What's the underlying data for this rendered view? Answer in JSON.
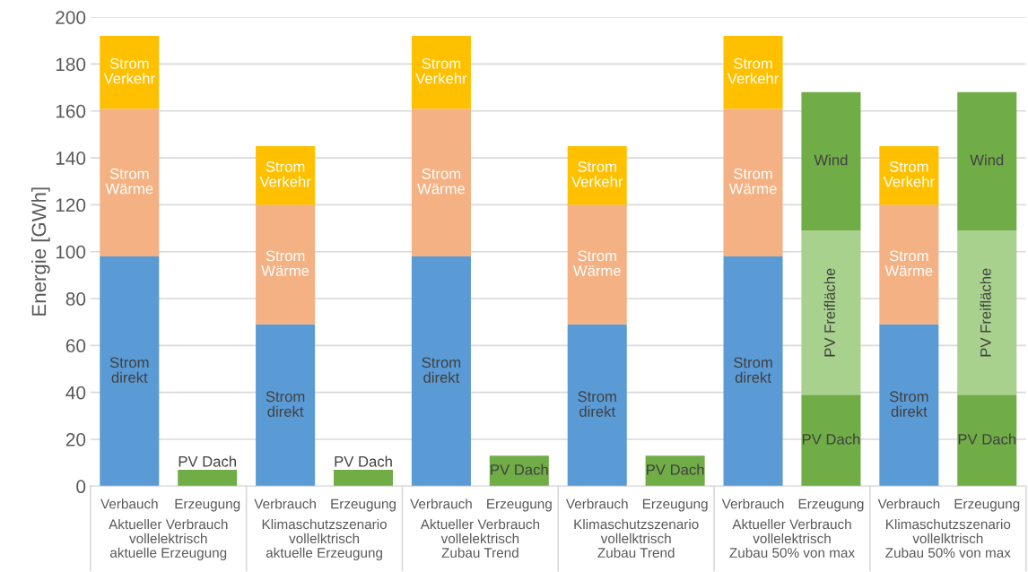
{
  "chart_data": {
    "type": "bar",
    "stacked": true,
    "ylabel": "Energie [GWh]",
    "categories": [
      "Verbauch",
      "Erzeugung",
      "Verbrauch",
      "Erzeugung",
      "Verbrauch",
      "Erzeugung",
      "Verbrauch",
      "Erzeugung",
      "Verbrauch",
      "Erzeugung",
      "Verbrauch",
      "Erzeugung"
    ],
    "series": [
      {
        "name": "Strom\ndirekt",
        "color": "#5b9bd5",
        "values": [
          98,
          null,
          69,
          null,
          98,
          null,
          69,
          null,
          98,
          null,
          69,
          null
        ]
      },
      {
        "name": "Strom\nWärme",
        "color": "#f4b183",
        "values": [
          63,
          null,
          51,
          null,
          63,
          null,
          51,
          null,
          63,
          null,
          51,
          null
        ]
      },
      {
        "name": "Strom\nVerkehr",
        "color": "#ffc000",
        "values": [
          31,
          null,
          25,
          null,
          31,
          null,
          25,
          null,
          31,
          null,
          25,
          null
        ]
      },
      {
        "name": "PV Dach",
        "color": "#70ad47",
        "values": [
          null,
          7,
          null,
          7,
          null,
          13,
          null,
          13,
          null,
          39,
          null,
          39
        ]
      },
      {
        "name": "PV Freifläche",
        "color": "#a9d18e",
        "values": [
          null,
          null,
          null,
          null,
          null,
          null,
          null,
          null,
          null,
          70,
          null,
          70
        ]
      },
      {
        "name": "Wind",
        "color": "#70ad47",
        "values": [
          null,
          null,
          null,
          null,
          null,
          null,
          null,
          null,
          null,
          59,
          null,
          59
        ]
      }
    ],
    "annotations": [
      "Aktueller Verbrauch\nvollelektrisch\naktuelle Erzeugung",
      "Klimaschutzszenario\nvollelktrisch\naktuelle Erzeugung",
      "Aktueller Verbrauch\nvollelektrisch\nZubau Trend",
      "Klimaschutzszenario\nvollelktrisch\nZubau Trend",
      "Aktueller Verbrauch\nvollelektrisch\nZubau 50% von max",
      "Klimaschutzszenario\nvollelktrisch\nZubau 50% von max"
    ],
    "ylim": [
      0,
      200
    ],
    "yticks": [
      0,
      20,
      40,
      60,
      80,
      100,
      120,
      140,
      160,
      180,
      200
    ],
    "grid": "y"
  }
}
